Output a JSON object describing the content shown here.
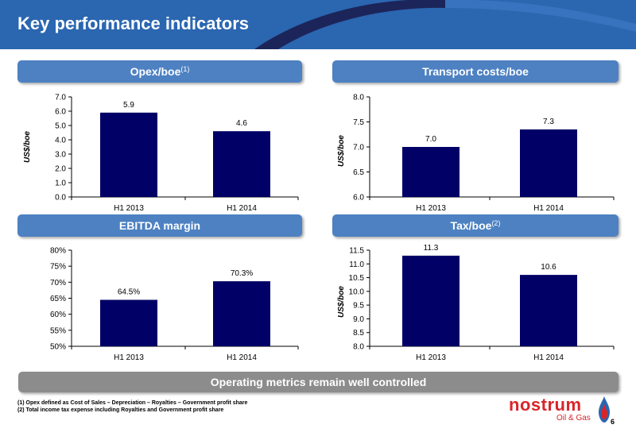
{
  "header": {
    "title": "Key performance indicators"
  },
  "panels": [
    {
      "label": "Opex/boe",
      "sup": "(1)"
    },
    {
      "label": "Transport costs/boe",
      "sup": ""
    },
    {
      "label": "EBITDA margin",
      "sup": ""
    },
    {
      "label": "Tax/boe",
      "sup": "(2)"
    }
  ],
  "chart_data": [
    {
      "type": "bar",
      "categories": [
        "H1 2013",
        "H1 2014"
      ],
      "values": [
        5.9,
        4.6
      ],
      "data_labels": [
        "5.9",
        "4.6"
      ],
      "title": "Opex/boe",
      "ylabel": "US$/boe",
      "ylim": [
        0,
        7
      ],
      "yticks": [
        "0.0",
        "1.0",
        "2.0",
        "3.0",
        "4.0",
        "5.0",
        "6.0",
        "7.0"
      ],
      "bar_color": "#000066"
    },
    {
      "type": "bar",
      "categories": [
        "H1 2013",
        "H1 2014"
      ],
      "values": [
        7.0,
        7.35
      ],
      "data_labels": [
        "7.0",
        "7.3"
      ],
      "title": "Transport costs/boe",
      "ylabel": "US$/boe",
      "ylim": [
        6,
        8
      ],
      "yticks": [
        "6.0",
        "6.5",
        "7.0",
        "7.5",
        "8.0"
      ],
      "bar_color": "#000066"
    },
    {
      "type": "bar",
      "categories": [
        "H1 2013",
        "H1 2014"
      ],
      "values": [
        64.5,
        70.3
      ],
      "data_labels": [
        "64.5%",
        "70.3%"
      ],
      "title": "EBITDA margin",
      "ylabel": "",
      "ylim": [
        50,
        80
      ],
      "yticks": [
        "50%",
        "55%",
        "60%",
        "65%",
        "70%",
        "75%",
        "80%"
      ],
      "bar_color": "#000066"
    },
    {
      "type": "bar",
      "categories": [
        "H1 2013",
        "H1 2014"
      ],
      "values": [
        11.3,
        10.6
      ],
      "data_labels": [
        "11.3",
        "10.6"
      ],
      "title": "Tax/boe",
      "ylabel": "US$/boe",
      "ylim": [
        8,
        11.5
      ],
      "yticks": [
        "8.0",
        "8.5",
        "9.0",
        "9.5",
        "10.0",
        "10.5",
        "11.0",
        "11.5"
      ],
      "bar_color": "#000066"
    }
  ],
  "banner": {
    "text": "Operating metrics remain well controlled"
  },
  "footnotes": [
    "(1) Opex defined as Cost of Sales – Depreciation – Royalties – Government profit share",
    "(2) Total income tax expense including Royalties and Government profit share"
  ],
  "logo": {
    "name": "nostrum",
    "sub": "Oil & Gas",
    "color": "#d9252a"
  },
  "page_number": "6"
}
